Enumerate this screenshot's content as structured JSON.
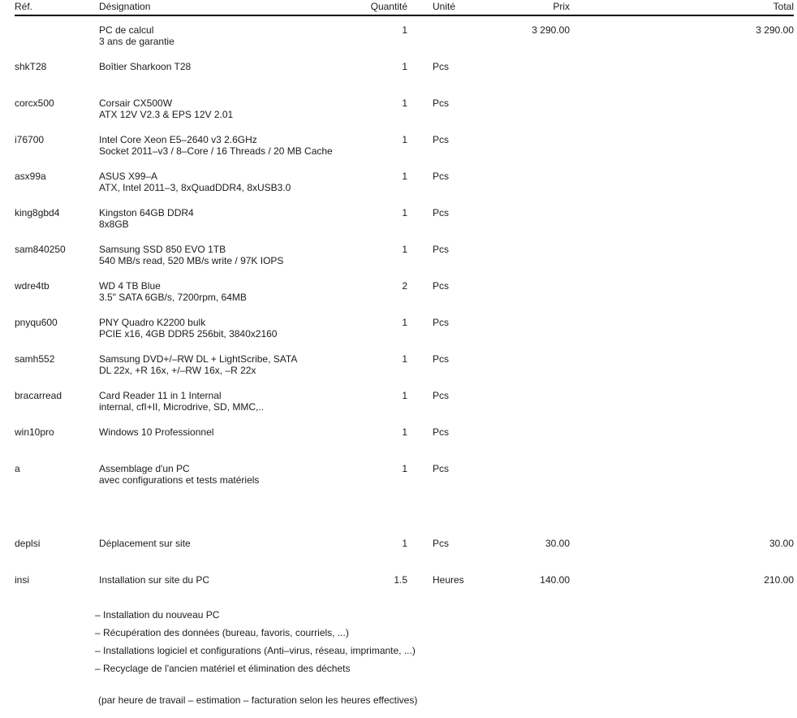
{
  "colors": {
    "text": "#1b1b1b",
    "rule": "#000000",
    "background": "#ffffff"
  },
  "table": {
    "header": {
      "ref": "Réf.",
      "designation": "Désignation",
      "quantity": "Quantité",
      "unit": "Unité",
      "price": "Prix",
      "total": "Total"
    },
    "rows": [
      {
        "ref": "",
        "name": "PC de calcul",
        "detail": "3 ans de garantie",
        "qty": "1",
        "unit": "",
        "price": "3 290.00",
        "total": "3 290.00"
      },
      {
        "ref": "shkT28",
        "name": "Boîtier Sharkoon T28",
        "detail": "",
        "qty": "1",
        "unit": "Pcs",
        "price": "",
        "total": ""
      },
      {
        "ref": "corcx500",
        "name": "Corsair CX500W",
        "detail": "ATX 12V V2.3 & EPS 12V 2.01",
        "qty": "1",
        "unit": "Pcs",
        "price": "",
        "total": ""
      },
      {
        "ref": "i76700",
        "name": "Intel Core Xeon E5–2640 v3 2.6GHz",
        "detail": "Socket 2011–v3 / 8–Core / 16 Threads / 20 MB Cache",
        "qty": "1",
        "unit": "Pcs",
        "price": "",
        "total": ""
      },
      {
        "ref": "asx99a",
        "name": "ASUS X99–A",
        "detail": "ATX, Intel 2011–3, 8xQuadDDR4, 8xUSB3.0",
        "qty": "1",
        "unit": "Pcs",
        "price": "",
        "total": ""
      },
      {
        "ref": "king8gbd4",
        "name": "Kingston 64GB DDR4",
        "detail": "8x8GB",
        "qty": "1",
        "unit": "Pcs",
        "price": "",
        "total": ""
      },
      {
        "ref": "sam840250",
        "name": "Samsung SSD 850 EVO 1TB",
        "detail": "540 MB/s read, 520 MB/s write / 97K IOPS",
        "qty": "1",
        "unit": "Pcs",
        "price": "",
        "total": ""
      },
      {
        "ref": "wdre4tb",
        "name": "WD 4 TB Blue",
        "detail": "3.5\" SATA 6GB/s, 7200rpm, 64MB",
        "qty": "2",
        "unit": "Pcs",
        "price": "",
        "total": ""
      },
      {
        "ref": "pnyqu600",
        "name": "PNY Quadro K2200 bulk",
        "detail": "PCIE x16, 4GB DDR5 256bit, 3840x2160",
        "qty": "1",
        "unit": "Pcs",
        "price": "",
        "total": ""
      },
      {
        "ref": "samh552",
        "name": "Samsung DVD+/–RW DL + LightScribe, SATA",
        "detail": "DL 22x, +R 16x, +/–RW 16x, –R 22x",
        "qty": "1",
        "unit": "Pcs",
        "price": "",
        "total": ""
      },
      {
        "ref": "bracarread",
        "name": "Card Reader 11 in 1 Internal",
        "detail": "internal, cfI+II, Microdrive, SD, MMC,..",
        "qty": "1",
        "unit": "Pcs",
        "price": "",
        "total": ""
      },
      {
        "ref": "win10pro",
        "name": "Windows 10 Professionnel",
        "detail": "",
        "qty": "1",
        "unit": "Pcs",
        "price": "",
        "total": ""
      },
      {
        "ref": "a",
        "name": "Assemblage d'un PC",
        "detail": "avec configurations et tests matériels",
        "qty": "1",
        "unit": "Pcs",
        "price": "",
        "total": ""
      }
    ],
    "service_rows": [
      {
        "ref": "deplsi",
        "name": "Déplacement sur site",
        "detail": "",
        "qty": "1",
        "unit": "Pcs",
        "price": "30.00",
        "total": "30.00"
      },
      {
        "ref": "insi",
        "name": "Installation sur site du PC",
        "detail": "",
        "qty": "1.5",
        "unit": "Heures",
        "price": "140.00",
        "total": "210.00"
      }
    ]
  },
  "installation_details": [
    "– Installation du nouveau PC",
    "– Récupération des données (bureau, favoris, courriels, ...)",
    "– Installations logiciel et configurations (Anti–virus, réseau, imprimante, ...)",
    "– Recyclage de l'ancien matériel et élimination des déchets"
  ],
  "note": "(par heure de travail – estimation – facturation selon les heures effectives)"
}
